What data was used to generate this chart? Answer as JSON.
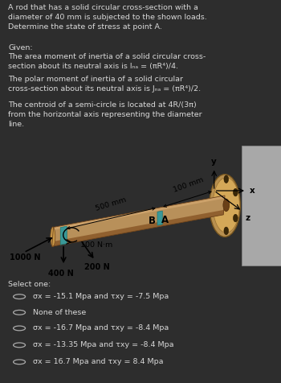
{
  "bg_color": "#2d2d2d",
  "diagram_bg": "#c0c0c0",
  "text_color": "#d8d8d8",
  "title_text": "A rod that has a solid circular cross-section with a\ndiameter of 40 mm is subjected to the shown loads.\nDetermine the state of stress at point A.",
  "given_label": "Given:",
  "given_line1": "The area moment of inertia of a solid circular cross-\nsection about its neutral axis is Iₙₐ = (πR⁴)/4.",
  "given_line2": "The polar moment of inertia of a solid circular\ncross-section about its neutral axis is Jₙₐ = (πR⁴)/2.",
  "given_line3": "The centroid of a semi-circle is located at 4R/(3π)\nfrom the horizontal axis representing the diameter\nline.",
  "select_label": "Select one:",
  "options": [
    "σx = -15.1 Mpa and τxy = -7.5 Mpa",
    "None of these",
    "σx = -16.7 Mpa and τxy = -8.4 Mpa",
    "σx = -13.35 Mpa and τxy = -8.4 Mpa",
    "σx = 16.7 Mpa and τxy = 8.4 Mpa"
  ],
  "dim_500mm": "500 mm",
  "dim_100mm": "100 mm",
  "load_1000N": "1000 N",
  "load_100Nm": "100 N·m",
  "load_200N": "200 N",
  "load_400N": "400 N",
  "label_B": "B",
  "label_A": "A",
  "label_x": "x",
  "label_y": "y",
  "label_z": "z"
}
